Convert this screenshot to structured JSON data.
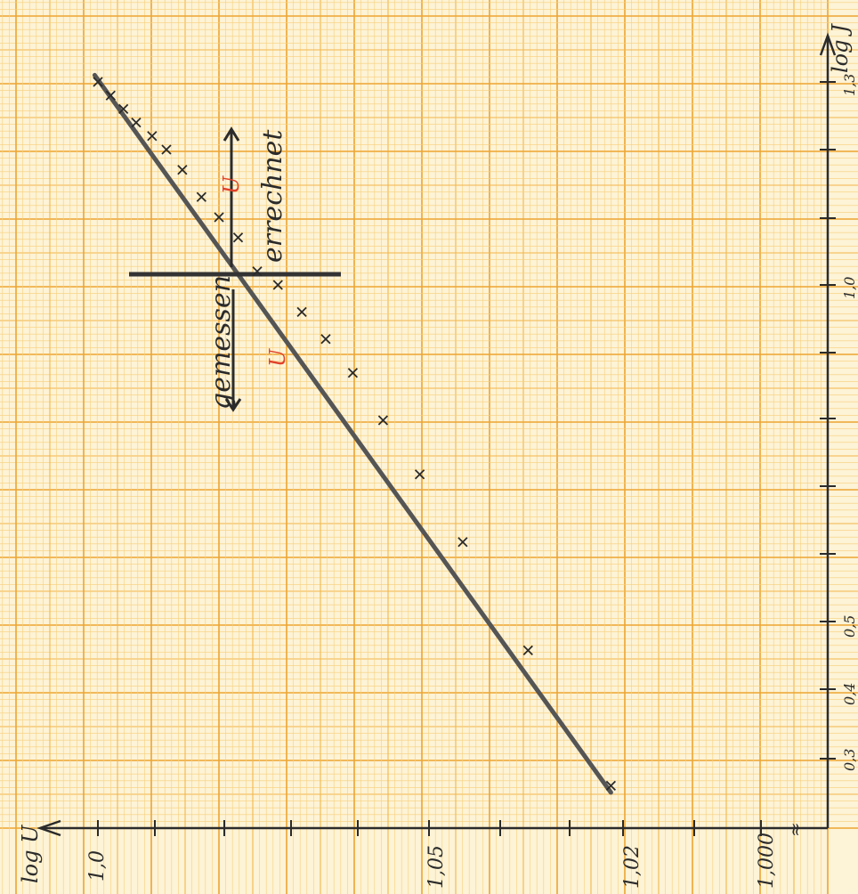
{
  "colors": {
    "paper": "#fdf3d6",
    "grid_fine": "#f7cf7a",
    "grid_mid": "#f2b64a",
    "grid_major": "#eda531",
    "ink": "#2b2b2b",
    "marker": "#e0412a"
  },
  "chart_data": {
    "type": "scatter",
    "title": "",
    "orientation": "rotated 90° clockwise: log J axis runs bottom-to-top, log U axis runs right-to-left",
    "xlabel": "log U",
    "ylabel": "log J",
    "x_ticks": [
      "1,0",
      "1,05",
      "1,02",
      "1,000"
    ],
    "y_ticks": [
      "0,3",
      "0,4",
      "0,5",
      "1,0",
      "1,3"
    ],
    "axis_break_mark": "≈",
    "annotations": {
      "measured": "gemessen",
      "calculated": "errechnet",
      "measured_symbol": "U",
      "calculated_symbol": "U"
    },
    "series": [
      {
        "marker": "x",
        "points": [
          [
            0.0,
            1.3
          ],
          [
            0.8,
            1.28
          ],
          [
            1.6,
            1.26
          ],
          [
            2.4,
            1.24
          ],
          [
            3.4,
            1.22
          ],
          [
            4.3,
            1.2
          ],
          [
            5.3,
            1.17
          ],
          [
            6.5,
            1.13
          ],
          [
            7.6,
            1.1
          ],
          [
            8.8,
            1.07
          ],
          [
            10.0,
            1.02
          ],
          [
            11.3,
            1.0
          ],
          [
            12.8,
            0.96
          ],
          [
            14.3,
            0.92
          ],
          [
            16.0,
            0.87
          ],
          [
            17.9,
            0.8
          ],
          [
            20.2,
            0.72
          ],
          [
            22.9,
            0.62
          ],
          [
            27.0,
            0.46
          ],
          [
            32.2,
            0.26
          ]
        ]
      }
    ],
    "fit_line": {
      "from": [
        -0.2,
        1.31
      ],
      "to": [
        32.2,
        0.25
      ]
    },
    "divider_between": [
      "gemessen",
      "errechnet"
    ]
  }
}
